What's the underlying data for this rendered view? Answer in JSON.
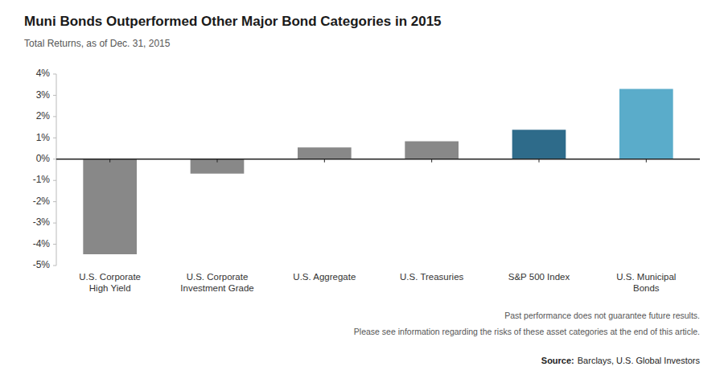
{
  "chart_data": {
    "type": "bar",
    "title": "Muni Bonds Outperformed Other Major Bond Categories in 2015",
    "subtitle": "Total Returns, as of Dec. 31, 2015",
    "categories": [
      "U.S. Corporate\nHigh Yield",
      "U.S. Corporate\nInvestment Grade",
      "U.S. Aggregate",
      "U.S. Treasuries",
      "S&P 500 Index",
      "U.S. Municipal\nBonds"
    ],
    "values": [
      -4.47,
      -0.68,
      0.55,
      0.84,
      1.38,
      3.3
    ],
    "colors": [
      "#888888",
      "#888888",
      "#888888",
      "#888888",
      "#2e6b8a",
      "#5aacca"
    ],
    "ylim": [
      -5,
      4
    ],
    "yticks": [
      {
        "value": -5,
        "label": "-5%"
      },
      {
        "value": -4,
        "label": "-4%"
      },
      {
        "value": -3,
        "label": "-3%"
      },
      {
        "value": -2,
        "label": "-2%"
      },
      {
        "value": -1,
        "label": "-1%"
      },
      {
        "value": 0,
        "label": "0%"
      },
      {
        "value": 1,
        "label": "1%"
      },
      {
        "value": 2,
        "label": "2%"
      },
      {
        "value": 3,
        "label": "3%"
      },
      {
        "value": 4,
        "label": "4%"
      }
    ],
    "grid": false,
    "annotations": [
      "Past performance does not guarantee future results.",
      "Please see information regarding the risks of these asset categories at the end of this article."
    ],
    "source": {
      "label": "Source:",
      "text": "Barclays, U.S. Global Investors"
    }
  }
}
